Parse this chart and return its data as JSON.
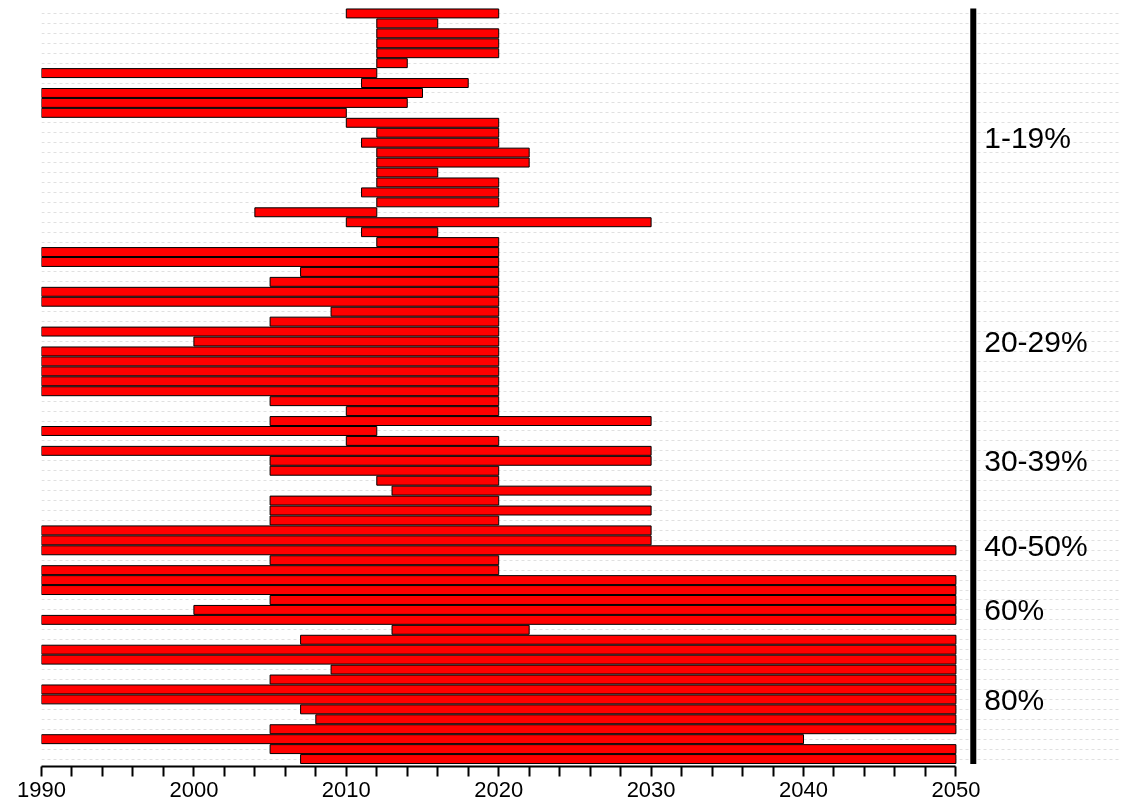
{
  "chart_data": {
    "type": "bar",
    "orientation": "horizontal",
    "color": "#ff0000",
    "categories": [
      null,
      null,
      null,
      null,
      null,
      null,
      null,
      null,
      null,
      null,
      null,
      null,
      null,
      null,
      null,
      null,
      null,
      null,
      null,
      null,
      null,
      null,
      null,
      null,
      null,
      null,
      null,
      null,
      null,
      null,
      null,
      null,
      null,
      null,
      null,
      null,
      null,
      null,
      null,
      null,
      null,
      null,
      null,
      null,
      null,
      null,
      null,
      null,
      null,
      null,
      null,
      null,
      null,
      null,
      null,
      null,
      null,
      null,
      null,
      null,
      null,
      null,
      null,
      null,
      null,
      null,
      null,
      null,
      null,
      null,
      null,
      null,
      null,
      null,
      null,
      null
    ],
    "base": [
      2010,
      2012,
      2012,
      2012,
      2012,
      2012,
      1990,
      2011,
      1990,
      1990,
      1990,
      2010,
      2012,
      2011,
      2012,
      2012,
      2012,
      2012,
      2011,
      2012,
      2004,
      2010,
      2011,
      2012,
      1990,
      1990,
      2007,
      2005,
      1990,
      1990,
      2009,
      2005,
      1990,
      2000,
      1990,
      1990,
      1990,
      1990,
      1990,
      2005,
      2010,
      2005,
      1990,
      2010,
      1990,
      2005,
      2005,
      2012,
      2013,
      2005,
      2005,
      2005,
      1990,
      1990,
      1990,
      2005,
      1990,
      1990,
      1990,
      2005,
      2000,
      1990,
      2013,
      2007,
      1990,
      1990,
      2009,
      2005,
      1990,
      1990,
      2007,
      2008,
      2005,
      1990,
      2005,
      2007
    ],
    "values": [
      10,
      4,
      8,
      8,
      8,
      2,
      22,
      7,
      25,
      24,
      20,
      10,
      8,
      9,
      10,
      10,
      4,
      8,
      9,
      8,
      8,
      20,
      5,
      8,
      30,
      30,
      13,
      15,
      30,
      30,
      11,
      15,
      30,
      20,
      30,
      30,
      30,
      30,
      30,
      15,
      10,
      25,
      22,
      10,
      40,
      25,
      15,
      8,
      17,
      15,
      25,
      15,
      40,
      40,
      60,
      15,
      30,
      60,
      60,
      45,
      50,
      60,
      9,
      43,
      60,
      60,
      41,
      45,
      60,
      60,
      43,
      42,
      45,
      50,
      45,
      43
    ],
    "xlim": [
      1990,
      2050
    ],
    "xticks": [
      1990,
      {
        "value": 1992,
        "label": null
      },
      {
        "value": 1994,
        "label": null
      },
      {
        "value": 1996,
        "label": null
      },
      {
        "value": 1998,
        "label": null
      },
      2000,
      {
        "value": 2002,
        "label": null
      },
      {
        "value": 2004,
        "label": null
      },
      {
        "value": 2006,
        "label": null
      },
      {
        "value": 2008,
        "label": null
      },
      2010,
      {
        "value": 2012,
        "label": null
      },
      {
        "value": 2014,
        "label": null
      },
      {
        "value": 2016,
        "label": null
      },
      {
        "value": 2018,
        "label": null
      },
      2020,
      {
        "value": 2022,
        "label": null
      },
      {
        "value": 2024,
        "label": null
      },
      {
        "value": 2026,
        "label": null
      },
      {
        "value": 2028,
        "label": null
      },
      2030,
      {
        "value": 2032,
        "label": null
      },
      {
        "value": 2034,
        "label": null
      },
      {
        "value": 2036,
        "label": null
      },
      {
        "value": 2038,
        "label": null
      },
      2040,
      {
        "value": 2042,
        "label": null
      },
      {
        "value": 2044,
        "label": null
      },
      {
        "value": 2046,
        "label": null
      },
      {
        "value": 2048,
        "label": null
      },
      2050
    ],
    "grid": "y",
    "tick_labels": "x",
    "annotations": [
      "1-19%",
      "20-29%",
      "30-39%",
      "40-50%",
      "60%",
      "80%"
    ]
  }
}
